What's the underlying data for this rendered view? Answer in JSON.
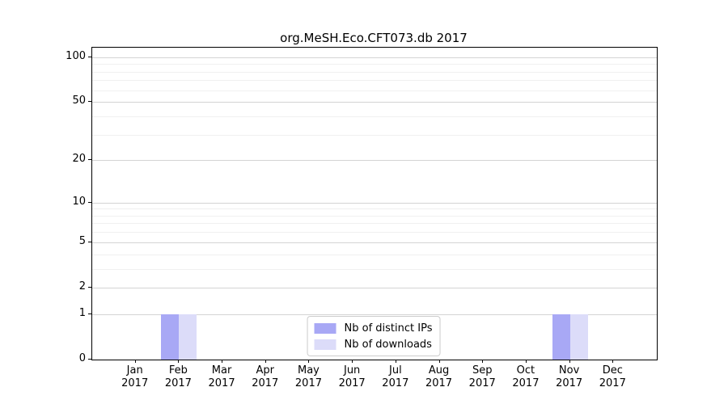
{
  "chart_data": {
    "type": "bar",
    "title": "org.MeSH.Eco.CFT073.db 2017",
    "categories": [
      "Jan",
      "Feb",
      "Mar",
      "Apr",
      "May",
      "Jun",
      "Jul",
      "Aug",
      "Sep",
      "Oct",
      "Nov",
      "Dec"
    ],
    "x_tick_year": "2017",
    "series": [
      {
        "name": "Nb of distinct IPs",
        "color": "#a8a8f5",
        "values": [
          0,
          1,
          0,
          0,
          0,
          0,
          0,
          0,
          0,
          0,
          1,
          0
        ]
      },
      {
        "name": "Nb of downloads",
        "color": "#dcdcf9",
        "values": [
          0,
          1,
          0,
          0,
          0,
          0,
          0,
          0,
          0,
          0,
          1,
          0
        ]
      }
    ],
    "scale": "log1p",
    "ylim": [
      0,
      116
    ],
    "y_ticks": [
      0,
      1,
      2,
      5,
      10,
      20,
      50,
      100
    ],
    "y_minor_ticks": [
      3,
      4,
      6,
      7,
      8,
      9,
      30,
      40,
      60,
      70,
      80,
      90
    ],
    "grid": true,
    "legend_position": "lower center",
    "colors": {
      "major_grid": "#d4d4d4",
      "minor_grid": "#f0f0f0",
      "axis": "#000000",
      "background": "#ffffff"
    }
  }
}
